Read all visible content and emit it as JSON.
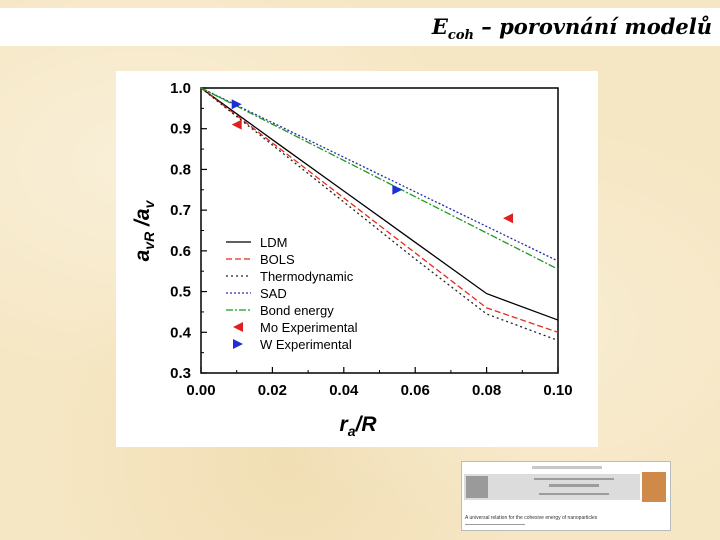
{
  "slide": {
    "title_main": "E",
    "title_sub": "coh",
    "title_rest": " – porovnání modelů"
  },
  "chart_data": {
    "type": "line",
    "xlabel": "r",
    "xlabel_sub": "a",
    "xlabel_rest": "/R",
    "ylabel": "a",
    "ylabel_sub": "vR",
    "ylabel_mid": " /a",
    "ylabel_sub2": "v",
    "xlim": [
      0,
      0.1
    ],
    "ylim": [
      0.3,
      1.0
    ],
    "xticks": [
      "0.00",
      "0.02",
      "0.04",
      "0.06",
      "0.08",
      "0.10"
    ],
    "yticks": [
      "0.3",
      "0.4",
      "0.5",
      "0.6",
      "0.7",
      "0.8",
      "0.9",
      "1.0"
    ],
    "legend_position": "lower-left",
    "series": [
      {
        "name": "LDM",
        "kind": "line",
        "style": "solid",
        "color": "#000000",
        "x": [
          0,
          0.02,
          0.04,
          0.06,
          0.08,
          0.1
        ],
        "y": [
          1.0,
          0.873,
          0.747,
          0.621,
          0.495,
          0.43
        ]
      },
      {
        "name": "BOLS",
        "kind": "line",
        "style": "dash",
        "color": "#e8291c",
        "x": [
          0,
          0.02,
          0.04,
          0.06,
          0.08,
          0.1
        ],
        "y": [
          1.0,
          0.865,
          0.73,
          0.595,
          0.46,
          0.4
        ]
      },
      {
        "name": "Thermodynamic",
        "kind": "line",
        "style": "dot",
        "color": "#222222",
        "x": [
          0,
          0.02,
          0.04,
          0.06,
          0.08,
          0.1
        ],
        "y": [
          1.0,
          0.86,
          0.72,
          0.58,
          0.445,
          0.38
        ]
      },
      {
        "name": "SAD",
        "kind": "line",
        "style": "dotdense",
        "color": "#2a2aa8",
        "x": [
          0,
          0.02,
          0.04,
          0.06,
          0.08,
          0.1
        ],
        "y": [
          1.0,
          0.915,
          0.83,
          0.745,
          0.66,
          0.575
        ]
      },
      {
        "name": "Bond energy",
        "kind": "line",
        "style": "dashdot",
        "color": "#1e9a1e",
        "x": [
          0,
          0.02,
          0.04,
          0.06,
          0.08,
          0.1
        ],
        "y": [
          1.0,
          0.911,
          0.822,
          0.733,
          0.644,
          0.555
        ]
      },
      {
        "name": "Mo Experimental",
        "kind": "marker",
        "marker": "triangle-left",
        "color": "#e02020",
        "x": [
          0.01,
          0.086
        ],
        "y": [
          0.91,
          0.68
        ]
      },
      {
        "name": "W Experimental",
        "kind": "marker",
        "marker": "triangle-right",
        "color": "#1f2fd6",
        "x": [
          0.01,
          0.055
        ],
        "y": [
          0.96,
          0.75
        ]
      }
    ]
  },
  "thumbnail": {
    "caption": "A universal relation for the cohesive energy of nanoparticles"
  }
}
